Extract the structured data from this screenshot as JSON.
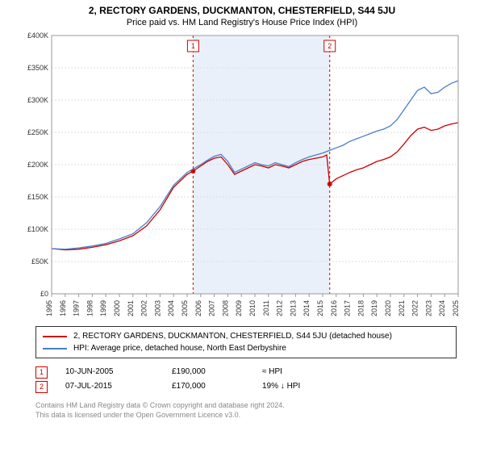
{
  "title": "2, RECTORY GARDENS, DUCKMANTON, CHESTERFIELD, S44 5JU",
  "subtitle": "Price paid vs. HM Land Registry's House Price Index (HPI)",
  "chart": {
    "type": "line",
    "background_color": "#ffffff",
    "shade_color": "#eaf0fa",
    "grid_color": "#dddddd",
    "ylim": [
      0,
      400000
    ],
    "ytick_step": 50000,
    "ytick_labels": [
      "£0",
      "£50K",
      "£100K",
      "£150K",
      "£200K",
      "£250K",
      "£300K",
      "£350K",
      "£400K"
    ],
    "xlim": [
      1995,
      2025
    ],
    "xtick_step": 1,
    "xtick_labels": [
      "1995",
      "1996",
      "1997",
      "1998",
      "1999",
      "2000",
      "2001",
      "2002",
      "2003",
      "2004",
      "2005",
      "2006",
      "2007",
      "2008",
      "2009",
      "2010",
      "2011",
      "2012",
      "2013",
      "2014",
      "2015",
      "2016",
      "2017",
      "2018",
      "2019",
      "2020",
      "2021",
      "2022",
      "2023",
      "2024",
      "2025"
    ],
    "shade_from": 2005.44,
    "shade_to": 2015.52,
    "label_fontsize": 9,
    "title_fontsize": 12,
    "line_width": 1.3,
    "series": [
      {
        "name": "property",
        "label": "2, RECTORY GARDENS, DUCKMANTON, CHESTERFIELD, S44 5JU (detached house)",
        "color": "#cc0000",
        "points": [
          [
            1995,
            70000
          ],
          [
            1996,
            68000
          ],
          [
            1997,
            69000
          ],
          [
            1998,
            72000
          ],
          [
            1999,
            76000
          ],
          [
            2000,
            82000
          ],
          [
            2001,
            90000
          ],
          [
            2002,
            105000
          ],
          [
            2003,
            130000
          ],
          [
            2004,
            165000
          ],
          [
            2005,
            185000
          ],
          [
            2005.44,
            190000
          ],
          [
            2006,
            198000
          ],
          [
            2006.5,
            205000
          ],
          [
            2007,
            210000
          ],
          [
            2007.5,
            212000
          ],
          [
            2008,
            200000
          ],
          [
            2008.5,
            185000
          ],
          [
            2009,
            190000
          ],
          [
            2009.5,
            195000
          ],
          [
            2010,
            200000
          ],
          [
            2010.5,
            198000
          ],
          [
            2011,
            195000
          ],
          [
            2011.5,
            200000
          ],
          [
            2012,
            198000
          ],
          [
            2012.5,
            195000
          ],
          [
            2013,
            200000
          ],
          [
            2013.5,
            205000
          ],
          [
            2014,
            208000
          ],
          [
            2014.5,
            210000
          ],
          [
            2015,
            212000
          ],
          [
            2015.3,
            215000
          ],
          [
            2015.52,
            170000
          ],
          [
            2016,
            178000
          ],
          [
            2016.5,
            183000
          ],
          [
            2017,
            188000
          ],
          [
            2017.5,
            192000
          ],
          [
            2018,
            195000
          ],
          [
            2018.5,
            200000
          ],
          [
            2019,
            205000
          ],
          [
            2019.5,
            208000
          ],
          [
            2020,
            212000
          ],
          [
            2020.5,
            220000
          ],
          [
            2021,
            232000
          ],
          [
            2021.5,
            245000
          ],
          [
            2022,
            255000
          ],
          [
            2022.5,
            258000
          ],
          [
            2023,
            253000
          ],
          [
            2023.5,
            255000
          ],
          [
            2024,
            260000
          ],
          [
            2024.5,
            263000
          ],
          [
            2025,
            265000
          ]
        ]
      },
      {
        "name": "hpi",
        "label": "HPI: Average price, detached house, North East Derbyshire",
        "color": "#4a7ec8",
        "points": [
          [
            1995,
            70000
          ],
          [
            1996,
            69000
          ],
          [
            1997,
            71000
          ],
          [
            1998,
            74000
          ],
          [
            1999,
            78000
          ],
          [
            2000,
            85000
          ],
          [
            2001,
            93000
          ],
          [
            2002,
            110000
          ],
          [
            2003,
            135000
          ],
          [
            2004,
            168000
          ],
          [
            2005,
            188000
          ],
          [
            2006,
            200000
          ],
          [
            2006.5,
            207000
          ],
          [
            2007,
            213000
          ],
          [
            2007.5,
            216000
          ],
          [
            2008,
            205000
          ],
          [
            2008.5,
            188000
          ],
          [
            2009,
            193000
          ],
          [
            2009.5,
            198000
          ],
          [
            2010,
            203000
          ],
          [
            2010.5,
            200000
          ],
          [
            2011,
            198000
          ],
          [
            2011.5,
            203000
          ],
          [
            2012,
            200000
          ],
          [
            2012.5,
            197000
          ],
          [
            2013,
            203000
          ],
          [
            2013.5,
            208000
          ],
          [
            2014,
            212000
          ],
          [
            2014.5,
            215000
          ],
          [
            2015,
            218000
          ],
          [
            2015.5,
            222000
          ],
          [
            2016,
            226000
          ],
          [
            2016.5,
            230000
          ],
          [
            2017,
            236000
          ],
          [
            2017.5,
            240000
          ],
          [
            2018,
            244000
          ],
          [
            2018.5,
            248000
          ],
          [
            2019,
            252000
          ],
          [
            2019.5,
            255000
          ],
          [
            2020,
            260000
          ],
          [
            2020.5,
            270000
          ],
          [
            2021,
            285000
          ],
          [
            2021.5,
            300000
          ],
          [
            2022,
            315000
          ],
          [
            2022.5,
            320000
          ],
          [
            2023,
            310000
          ],
          [
            2023.5,
            312000
          ],
          [
            2024,
            320000
          ],
          [
            2024.5,
            326000
          ],
          [
            2025,
            330000
          ]
        ]
      }
    ],
    "sale_markers": [
      {
        "n": "1",
        "x": 2005.44,
        "y": 190000
      },
      {
        "n": "2",
        "x": 2015.52,
        "y": 170000
      }
    ]
  },
  "legend": {
    "items": [
      {
        "color": "#cc0000",
        "label": "2, RECTORY GARDENS, DUCKMANTON, CHESTERFIELD, S44 5JU (detached house)"
      },
      {
        "color": "#4a7ec8",
        "label": "HPI: Average price, detached house, North East Derbyshire"
      }
    ]
  },
  "transactions": [
    {
      "n": "1",
      "date": "10-JUN-2005",
      "price": "£190,000",
      "diff": "≈ HPI"
    },
    {
      "n": "2",
      "date": "07-JUL-2015",
      "price": "£170,000",
      "diff": "19% ↓ HPI"
    }
  ],
  "footer": {
    "line1": "Contains HM Land Registry data © Crown copyright and database right 2024.",
    "line2": "This data is licensed under the Open Government Licence v3.0."
  },
  "colors": {
    "marker_border": "#cc0000",
    "footer_text": "#888888"
  }
}
